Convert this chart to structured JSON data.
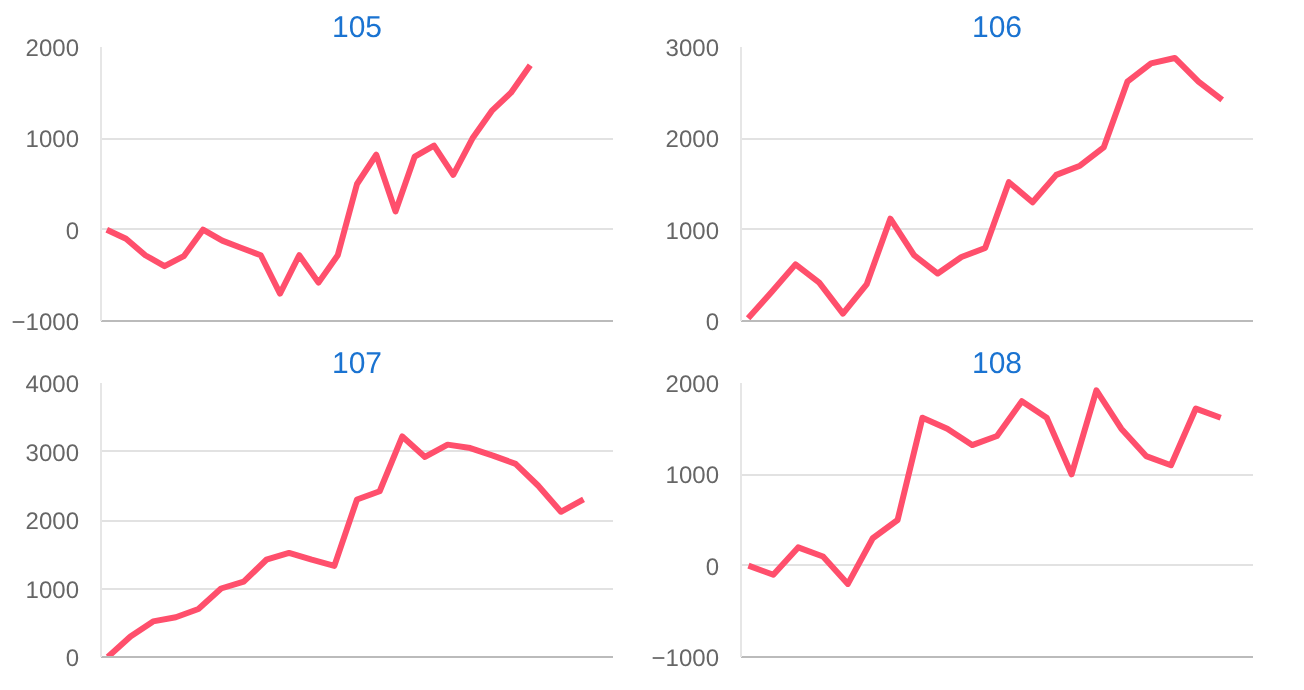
{
  "chart_data": [
    {
      "type": "line",
      "title": "105",
      "categories": [
        null,
        null,
        null,
        null,
        null,
        null,
        null,
        null,
        null,
        null,
        null,
        null,
        null,
        null,
        null,
        null,
        null,
        null,
        null,
        null,
        null,
        null,
        null,
        null,
        null,
        null,
        null
      ],
      "series": [
        {
          "color": "#ff4f6c",
          "values": [
            0,
            -100,
            -280,
            -400,
            -290,
            0,
            -120,
            -200,
            -280,
            -700,
            -280,
            -580,
            -280,
            500,
            820,
            200,
            800,
            920,
            600,
            1000,
            1300,
            1500,
            1800,
            null,
            null,
            null,
            null
          ]
        }
      ],
      "ylim": [
        -1000,
        2000
      ],
      "yticks": [
        -1000,
        0,
        1000,
        2000
      ],
      "grid": "y",
      "tick_labels": "y",
      "marker": "none",
      "line_style": "solid"
    },
    {
      "type": "line",
      "title": "106",
      "categories": [
        null,
        null,
        null,
        null,
        null,
        null,
        null,
        null,
        null,
        null,
        null,
        null,
        null,
        null,
        null,
        null,
        null,
        null,
        null,
        null,
        null,
        null
      ],
      "series": [
        {
          "color": "#ff4f6c",
          "values": [
            30,
            320,
            620,
            420,
            80,
            400,
            1120,
            720,
            520,
            700,
            800,
            1520,
            1300,
            1600,
            1700,
            1900,
            2620,
            2820,
            2880,
            2620,
            2420,
            null
          ]
        }
      ],
      "ylim": [
        0,
        3000
      ],
      "yticks": [
        0,
        1000,
        2000,
        3000
      ],
      "grid": "y",
      "tick_labels": "y",
      "marker": "none",
      "line_style": "solid"
    },
    {
      "type": "line",
      "title": "107",
      "categories": [
        null,
        null,
        null,
        null,
        null,
        null,
        null,
        null,
        null,
        null,
        null,
        null,
        null,
        null,
        null,
        null,
        null,
        null,
        null,
        null,
        null,
        null,
        null
      ],
      "series": [
        {
          "color": "#ff4f6c",
          "values": [
            0,
            300,
            520,
            580,
            700,
            1000,
            1100,
            1420,
            1520,
            1420,
            1330,
            2300,
            2420,
            3220,
            2920,
            3100,
            3050,
            2940,
            2820,
            2500,
            2120,
            2300,
            null
          ]
        }
      ],
      "ylim": [
        0,
        4000
      ],
      "yticks": [
        0,
        1000,
        2000,
        3000,
        4000
      ],
      "grid": "y",
      "tick_labels": "y",
      "marker": "none",
      "line_style": "solid"
    },
    {
      "type": "line",
      "title": "108",
      "categories": [
        null,
        null,
        null,
        null,
        null,
        null,
        null,
        null,
        null,
        null,
        null,
        null,
        null,
        null,
        null,
        null,
        null,
        null,
        null,
        null,
        null
      ],
      "series": [
        {
          "color": "#ff4f6c",
          "values": [
            0,
            -100,
            200,
            100,
            -200,
            300,
            500,
            1620,
            1500,
            1320,
            1420,
            1800,
            1620,
            1000,
            1920,
            1500,
            1200,
            1100,
            1720,
            1620,
            null
          ]
        }
      ],
      "ylim": [
        -1000,
        2000
      ],
      "yticks": [
        -1000,
        0,
        1000,
        2000
      ],
      "grid": "y",
      "tick_labels": "y",
      "marker": "none",
      "line_style": "solid"
    }
  ]
}
